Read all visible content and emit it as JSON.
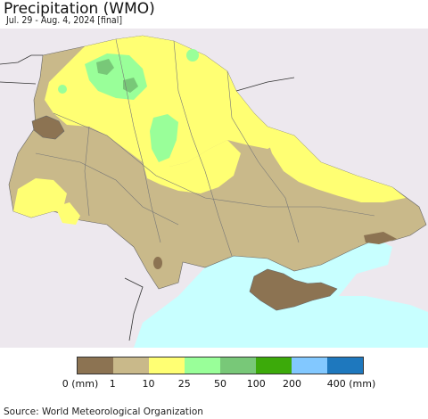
{
  "title": "Precipitation (WMO)",
  "subtitle": "Jul. 29 - Aug. 4, 2024 [final]",
  "source": "Source: World Meteorological Organization",
  "colors": {
    "background_land": "#ede8ee",
    "sea": "#c8ffff",
    "class_0_1": "#8c7352",
    "class_1_10": "#c9b98a",
    "class_10_25": "#ffff73",
    "class_25_50": "#99ff99",
    "class_50_100": "#78c878",
    "class_100_200": "#3caa0a",
    "class_200_400": "#82c8ff",
    "class_400_plus": "#1e78be"
  },
  "legend": {
    "colors": [
      "#8c7352",
      "#c9b98a",
      "#ffff73",
      "#99ff99",
      "#78c878",
      "#3caa0a",
      "#82c8ff",
      "#1e78be"
    ],
    "labels": [
      "0 (mm)",
      "1",
      "10",
      "25",
      "50",
      "100",
      "200",
      "400 (mm)"
    ]
  }
}
